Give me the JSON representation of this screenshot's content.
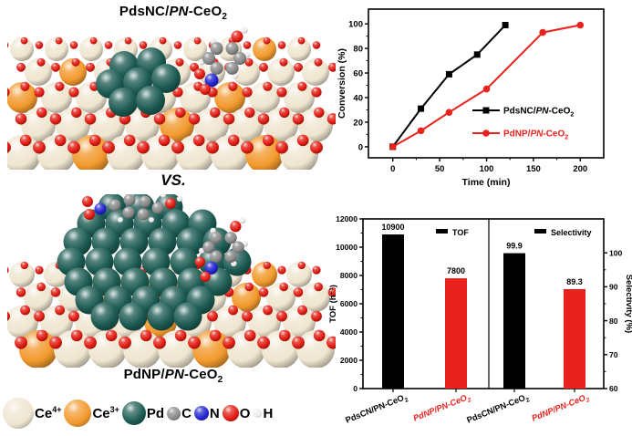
{
  "figure": {
    "panel_a": {
      "title": "PdsNC/PN-CeO2",
      "title_parts": {
        "pre": "PdsNC/",
        "italic": "PN",
        "post": "-CeO",
        "sub": "2"
      }
    },
    "vs_label": "VS.",
    "panel_b": {
      "title": "PdNP/PN-CeO2",
      "title_parts": {
        "pre": "PdNP/",
        "italic": "PN",
        "post": "-CeO",
        "sub": "2"
      }
    },
    "atom_legend": [
      {
        "name": "Ce4+",
        "text": "Ce",
        "sup": "4+",
        "color": "#efe5d0",
        "radius": 17
      },
      {
        "name": "Ce3+",
        "text": "Ce",
        "sup": "3+",
        "color": "#f29a2e",
        "radius": 15
      },
      {
        "name": "Pd",
        "text": "Pd",
        "sup": "",
        "color": "#1b5a52",
        "radius": 13
      },
      {
        "name": "C",
        "text": "C",
        "sup": "",
        "color": "#8a8a8a",
        "radius": 7.5
      },
      {
        "name": "N",
        "text": "N",
        "sup": "",
        "color": "#2323cf",
        "radius": 8
      },
      {
        "name": "O",
        "text": "O",
        "sup": "",
        "color": "#e01b12",
        "radius": 9
      },
      {
        "name": "H",
        "text": "H",
        "sup": "",
        "color": "#ececec",
        "radius": 5
      }
    ]
  },
  "chart_data": [
    {
      "type": "line",
      "title": "",
      "xlabel": "Time (min)",
      "ylabel": "Conversion (%)",
      "xlim": [
        -26,
        225
      ],
      "ylim": [
        -9,
        112
      ],
      "xticks": [
        0,
        50,
        100,
        150,
        200
      ],
      "yticks": [
        0,
        20,
        40,
        60,
        80,
        100
      ],
      "x_minor_step": 25,
      "y_minor_step": 10,
      "grid": false,
      "legend_position": "inside lower-right",
      "series": [
        {
          "name": "PdsNC/PN-CeO2",
          "name_parts": {
            "pre": "PdsNC/",
            "italic": "PN",
            "post": "-CeO",
            "sub": "2"
          },
          "color": "#000000",
          "marker": "square",
          "x": [
            0,
            30,
            60,
            90,
            120
          ],
          "y": [
            0,
            31,
            59,
            75,
            99
          ]
        },
        {
          "name": "PdNP/PN-CeO2",
          "name_parts": {
            "pre": "PdNP/",
            "italic": "PN",
            "post": "-CeO",
            "sub": "2"
          },
          "color": "#e8231d",
          "marker": "circle",
          "x": [
            0,
            30,
            60,
            100,
            160,
            200
          ],
          "y": [
            0,
            13,
            28,
            47,
            93,
            99
          ]
        }
      ]
    },
    {
      "type": "bar",
      "panels": [
        {
          "legend": "TOF",
          "ylabel": "TOF (h⁻¹)",
          "axis_side": "left",
          "ylim": [
            0,
            12000
          ],
          "yticks": [
            0,
            2000,
            4000,
            6000,
            8000,
            10000,
            12000
          ],
          "y_minor_step": 1000,
          "bars": [
            {
              "category": "PdsCN/PN-CeO2",
              "category_parts": {
                "pre": "PdsCN/PN-CeO",
                "sub": "2"
              },
              "value": 10900,
              "label": "10900",
              "color": "#000000"
            },
            {
              "category": "PdNP/PN-CeO2",
              "category_parts": {
                "pre": "PdNP/PN-CeO",
                "sub": "2"
              },
              "value": 7800,
              "label": "7800",
              "color": "#e8231d"
            }
          ]
        },
        {
          "legend": "Selectivity",
          "ylabel": "Selectivity (%)",
          "axis_side": "right",
          "ylim": [
            60,
            110
          ],
          "yticks": [
            60,
            70,
            80,
            90,
            100
          ],
          "y_minor_step": 5,
          "bars": [
            {
              "category": "PdsCN/PN-CeO2",
              "category_parts": {
                "pre": "PdsCN/PN-CeO",
                "sub": "2"
              },
              "value": 99.9,
              "label": "99.9",
              "color": "#000000"
            },
            {
              "category": "PdNP/PN-CeO2",
              "category_parts": {
                "pre": "PdNP/PN-CeO",
                "sub": "2"
              },
              "value": 89.3,
              "label": "89.3",
              "color": "#e8231d"
            }
          ]
        }
      ]
    }
  ]
}
